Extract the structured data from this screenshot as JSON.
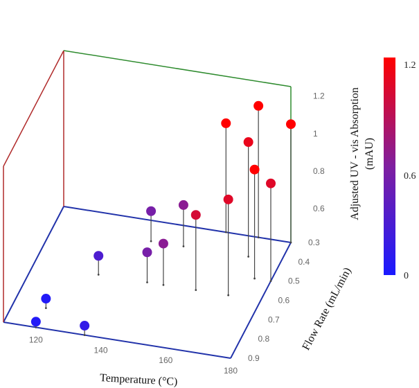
{
  "chart_data": {
    "type": "scatter",
    "subtype": "3d-stem",
    "title": "",
    "xlabel": "Temperature (°C)",
    "ylabel": "Flow Rate (mL/min)",
    "zlabel_line1": "Adjusted UV - vis Absorption",
    "zlabel_line2": "(mAU)",
    "x_ticks": [
      "120",
      "140",
      "160",
      "180"
    ],
    "y_ticks": [
      "0.3",
      "0.4",
      "0.5",
      "0.6",
      "0.7",
      "0.8",
      "0.9"
    ],
    "z_ticks": [
      "0.6",
      "0.8",
      "1",
      "1.2"
    ],
    "xlim": [
      110,
      180
    ],
    "ylim": [
      0.3,
      0.9
    ],
    "zlim": [
      0.42,
      1.25
    ],
    "colorbar": {
      "min": 0,
      "max": 1.2,
      "ticks": [
        "1.2",
        "0.6",
        "0"
      ],
      "min_color": "#1a1aff",
      "mid_color": "#7f1fa0",
      "max_color": "#ff0000"
    },
    "colors": {
      "back_left_edge": "#b02a2a",
      "back_right_edge": "#2e8b2e",
      "floor_edge": "#2233aa",
      "stem": "#444444"
    },
    "legend": "none",
    "grid": false,
    "points": [
      {
        "x": 120,
        "y": 0.9,
        "z": 0.45,
        "c": 0.05
      },
      {
        "x": 120,
        "y": 0.8,
        "z": 0.47,
        "c": 0.05
      },
      {
        "x": 130,
        "y": 0.6,
        "z": 0.52,
        "c": 0.3
      },
      {
        "x": 135,
        "y": 0.9,
        "z": 0.47,
        "c": 0.15
      },
      {
        "x": 140,
        "y": 0.4,
        "z": 0.58,
        "c": 0.55
      },
      {
        "x": 145,
        "y": 0.6,
        "z": 0.58,
        "c": 0.55
      },
      {
        "x": 150,
        "y": 0.4,
        "z": 0.64,
        "c": 0.65
      },
      {
        "x": 150,
        "y": 0.6,
        "z": 0.64,
        "c": 0.65
      },
      {
        "x": 160,
        "y": 0.3,
        "z": 1.0,
        "c": 1.2
      },
      {
        "x": 160,
        "y": 0.6,
        "z": 0.82,
        "c": 1.0
      },
      {
        "x": 170,
        "y": 0.3,
        "z": 1.12,
        "c": 1.2
      },
      {
        "x": 170,
        "y": 0.4,
        "z": 1.03,
        "c": 1.1
      },
      {
        "x": 170,
        "y": 0.6,
        "z": 0.93,
        "c": 1.05
      },
      {
        "x": 175,
        "y": 0.5,
        "z": 1.0,
        "c": 1.2
      },
      {
        "x": 180,
        "y": 0.3,
        "z": 1.05,
        "c": 1.2
      },
      {
        "x": 180,
        "y": 0.5,
        "z": 0.94,
        "c": 1.05
      }
    ]
  }
}
